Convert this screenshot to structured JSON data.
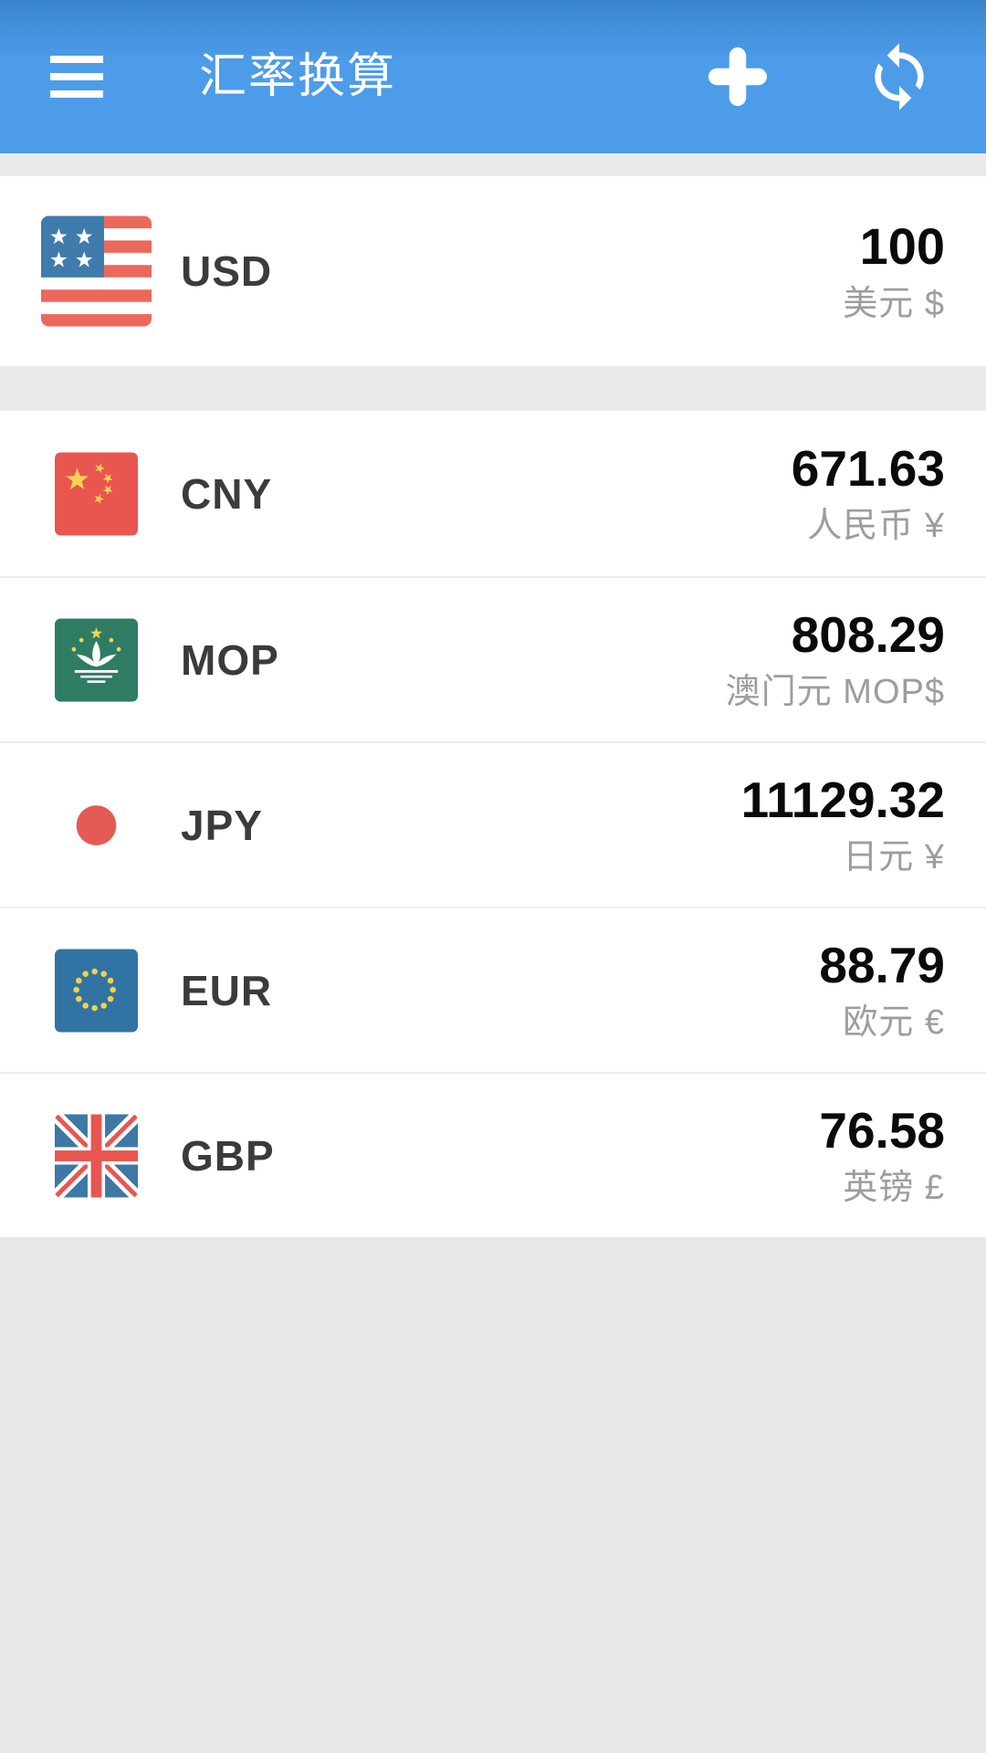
{
  "header": {
    "title": "汇率换算",
    "menu_icon": "menu-icon",
    "add_icon": "plus-icon",
    "refresh_icon": "sync-refresh-icon"
  },
  "base_currency": {
    "code": "USD",
    "amount": "100",
    "name_label": "美元 $",
    "flag_icon": "us-flag-icon"
  },
  "converted_currencies": [
    {
      "code": "CNY",
      "amount": "671.63",
      "name_label": "人民币 ¥",
      "flag_icon": "cn-flag-icon"
    },
    {
      "code": "MOP",
      "amount": "808.29",
      "name_label": "澳门元 MOP$",
      "flag_icon": "mo-flag-icon"
    },
    {
      "code": "JPY",
      "amount": "11129.32",
      "name_label": "日元 ¥",
      "flag_icon": "jp-flag-icon"
    },
    {
      "code": "EUR",
      "amount": "88.79",
      "name_label": "欧元 €",
      "flag_icon": "eu-flag-icon"
    },
    {
      "code": "GBP",
      "amount": "76.58",
      "name_label": "英镑 £",
      "flag_icon": "gb-flag-icon"
    }
  ],
  "colors": {
    "header_blue": "#4d9ce9",
    "header_blue_dark": "#3a84cd",
    "row_bg": "#ffffff",
    "strip_gray": "#eaeaea",
    "bottom_gray": "#e8e8e8",
    "amount_text": "#0a0a0a",
    "code_text": "#3b3b3b",
    "sub_text": "#9d9d9d"
  }
}
